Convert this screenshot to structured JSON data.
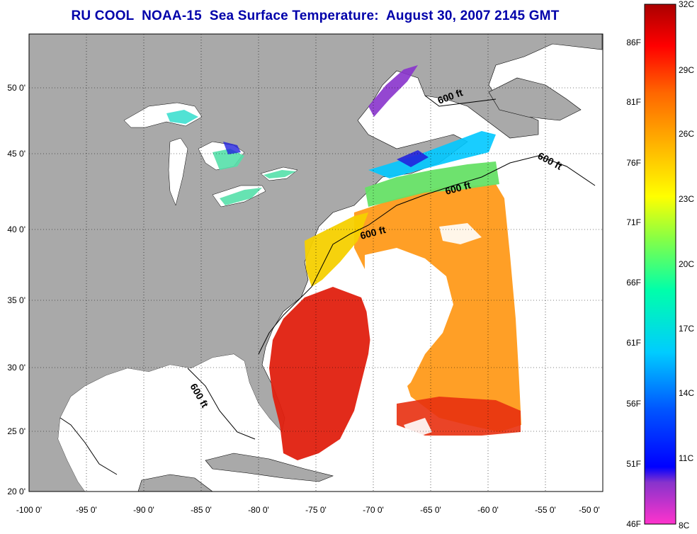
{
  "title": "RU COOL  NOAA-15  Sea Surface Temperature:  August 30, 2007 2145 GMT",
  "axes": {
    "lon_labels": [
      "-100 0'",
      "-95 0'",
      "-90 0'",
      "-85 0'",
      "-80 0'",
      "-75 0'",
      "-70 0'",
      "-65 0'",
      "-60 0'",
      "-55 0'",
      "-50 0'"
    ],
    "lat_labels": [
      "50 0'",
      "45 0'",
      "40 0'",
      "35 0'",
      "30 0'",
      "25 0'",
      "20 0'"
    ]
  },
  "depth_contour_label": "600 ft",
  "colorbar": {
    "celsius": [
      "32C",
      "29C",
      "26C",
      "23C",
      "20C",
      "17C",
      "14C",
      "11C",
      "8C"
    ],
    "fahrenheit": [
      "86F",
      "81F",
      "76F",
      "71F",
      "66F",
      "61F",
      "56F",
      "51F",
      "46F"
    ]
  },
  "colors": {
    "land": "#a9a9a9",
    "cloud_no_data": "#ffffff",
    "title": "#0000aa",
    "warm": "#e0200f",
    "cool": "#00c8ff"
  }
}
